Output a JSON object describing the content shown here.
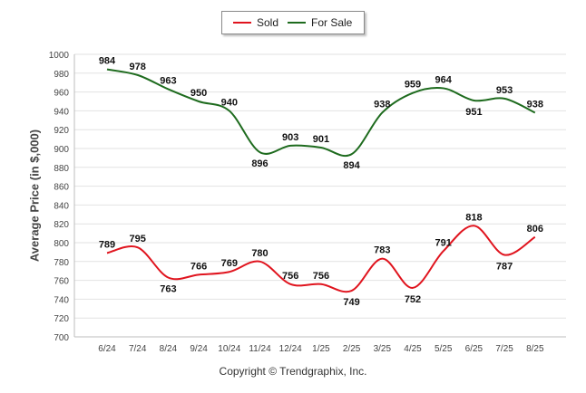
{
  "chart_data": {
    "type": "line",
    "categories": [
      "6/24",
      "7/24",
      "8/24",
      "9/24",
      "10/24",
      "11/24",
      "12/24",
      "1/25",
      "2/25",
      "3/25",
      "4/25",
      "5/25",
      "6/25",
      "7/25",
      "8/25"
    ],
    "series": [
      {
        "name": "Sold",
        "color": "#e0141e",
        "values": [
          789,
          795,
          763,
          766,
          769,
          780,
          756,
          756,
          749,
          783,
          752,
          791,
          818,
          787,
          806
        ]
      },
      {
        "name": "For Sale",
        "color": "#1e6b1e",
        "values": [
          984,
          978,
          963,
          950,
          940,
          896,
          903,
          901,
          894,
          938,
          959,
          964,
          951,
          953,
          938
        ]
      }
    ],
    "ylabel": "Average Price (in $,000)",
    "ylim": [
      700,
      1000
    ],
    "yticks": [
      700,
      720,
      740,
      760,
      780,
      800,
      820,
      840,
      860,
      880,
      900,
      920,
      940,
      960,
      980,
      1000
    ],
    "grid": true,
    "legend_position": "top-center",
    "data_labels": true
  },
  "credit": "Copyright © Trendgraphix, Inc."
}
